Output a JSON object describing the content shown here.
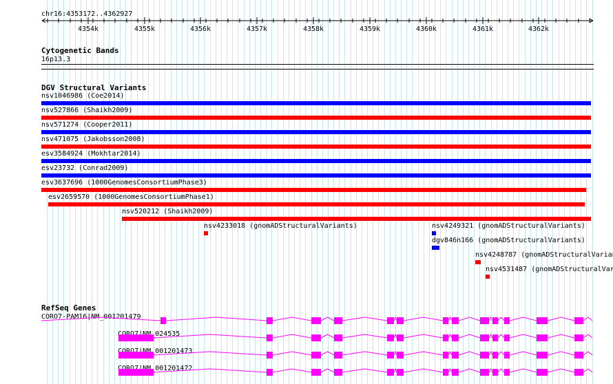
{
  "ruler": {
    "position_label": "chr16:4353172..4362927",
    "ticks": [
      "4354k",
      "4355k",
      "4356k",
      "4357k",
      "4358k",
      "4359k",
      "4360k",
      "4361k",
      "4362k"
    ]
  },
  "cytobands": {
    "title": "Cytogenetic Bands",
    "band": "16p13.3"
  },
  "dgv": {
    "title": "DGV Structural Variants",
    "variants": [
      {
        "label": "nsv1046986 (Coe2014)",
        "color": "#0000ff",
        "start": 4353172,
        "end": 4362927
      },
      {
        "label": "nsv527866 (Shaikh2009)",
        "color": "#ff0000",
        "start": 4353172,
        "end": 4362927
      },
      {
        "label": "nsv571274 (Cooper2011)",
        "color": "#0000ff",
        "start": 4353172,
        "end": 4362927
      },
      {
        "label": "nsv471075 (Jakobsson2008)",
        "color": "#ff0000",
        "start": 4353172,
        "end": 4362927
      },
      {
        "label": "esv3584924 (Mokhtar2014)",
        "color": "#0000ff",
        "start": 4353172,
        "end": 4362927
      },
      {
        "label": "esv23732 (Conrad2009)",
        "color": "#0000ff",
        "start": 4353172,
        "end": 4362927
      },
      {
        "label": "esv3637696 (1000GenomesConsortiumPhase3)",
        "color": "#ff0000",
        "start": 4353172,
        "end": 4362840
      },
      {
        "label": "esv2659570 (1000GenomesConsortiumPhase1)",
        "color": "#ff0000",
        "start": 4353300,
        "end": 4362810
      },
      {
        "label": "nsv520212 (Shaikh2009)",
        "color": "#ff0000",
        "start": 4354600,
        "end": 4362927
      },
      {
        "label": "nsv4233018 (gnomADStructuralVariants)",
        "color": "#ff0000",
        "start": 4356050,
        "end": 4356110
      },
      {
        "label": "nsv4249321 (gnomADStructuralVariants)",
        "color": "#0000ff",
        "start": 4360100,
        "end": 4360180
      },
      {
        "label": "dgv846n166 (gnomADStructuralVariants)",
        "color": "#0000ff",
        "start": 4360100,
        "end": 4360240
      },
      {
        "label": "nsv4248787 (gnomADStructuralVariants)",
        "color": "#ff0000",
        "start": 4360870,
        "end": 4360970
      },
      {
        "label": "nsv4531487 (gnomADStructuralVariants)",
        "color": "#ff0000",
        "start": 4361050,
        "end": 4361120
      }
    ]
  },
  "refseq": {
    "title": "RefSeq Genes",
    "color": "#ff00ff",
    "genes": [
      {
        "label": "CORO7-PAM16|NM_001201479"
      },
      {
        "label": "CORO7|NM_024535"
      },
      {
        "label": "CORO7|NM_001201473"
      },
      {
        "label": "CORO7|NM_001201472"
      }
    ]
  }
}
